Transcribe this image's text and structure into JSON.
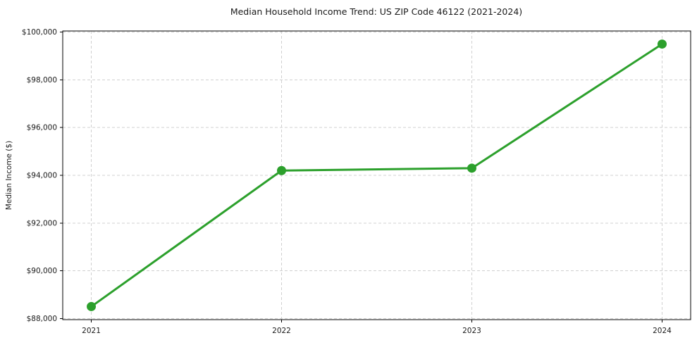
{
  "chart_data": {
    "type": "line",
    "title": "Median Household Income Trend: US ZIP Code 46122 (2021-2024)",
    "xlabel": "",
    "ylabel": "Median Income ($)",
    "categories": [
      "2021",
      "2022",
      "2023",
      "2024"
    ],
    "values": [
      88500,
      94200,
      94300,
      99500
    ],
    "ylim": [
      88000,
      100000
    ],
    "y_ticks": [
      88000,
      90000,
      92000,
      94000,
      96000,
      98000,
      100000
    ],
    "y_tick_labels": [
      "$88,000",
      "$90,000",
      "$92,000",
      "$94,000",
      "$96,000",
      "$98,000",
      "$100,000"
    ],
    "x_tick_labels": [
      "2021",
      "2022",
      "2023",
      "2024"
    ],
    "grid": true,
    "grid_style": "dashed",
    "legend_position": "none",
    "colors": {
      "line": "#2ca02c",
      "marker": "#2ca02c",
      "grid": "#d0d0d0",
      "spine": "#000000",
      "tick": "#000000",
      "text": "#1a1a1a",
      "background": "#ffffff"
    }
  }
}
